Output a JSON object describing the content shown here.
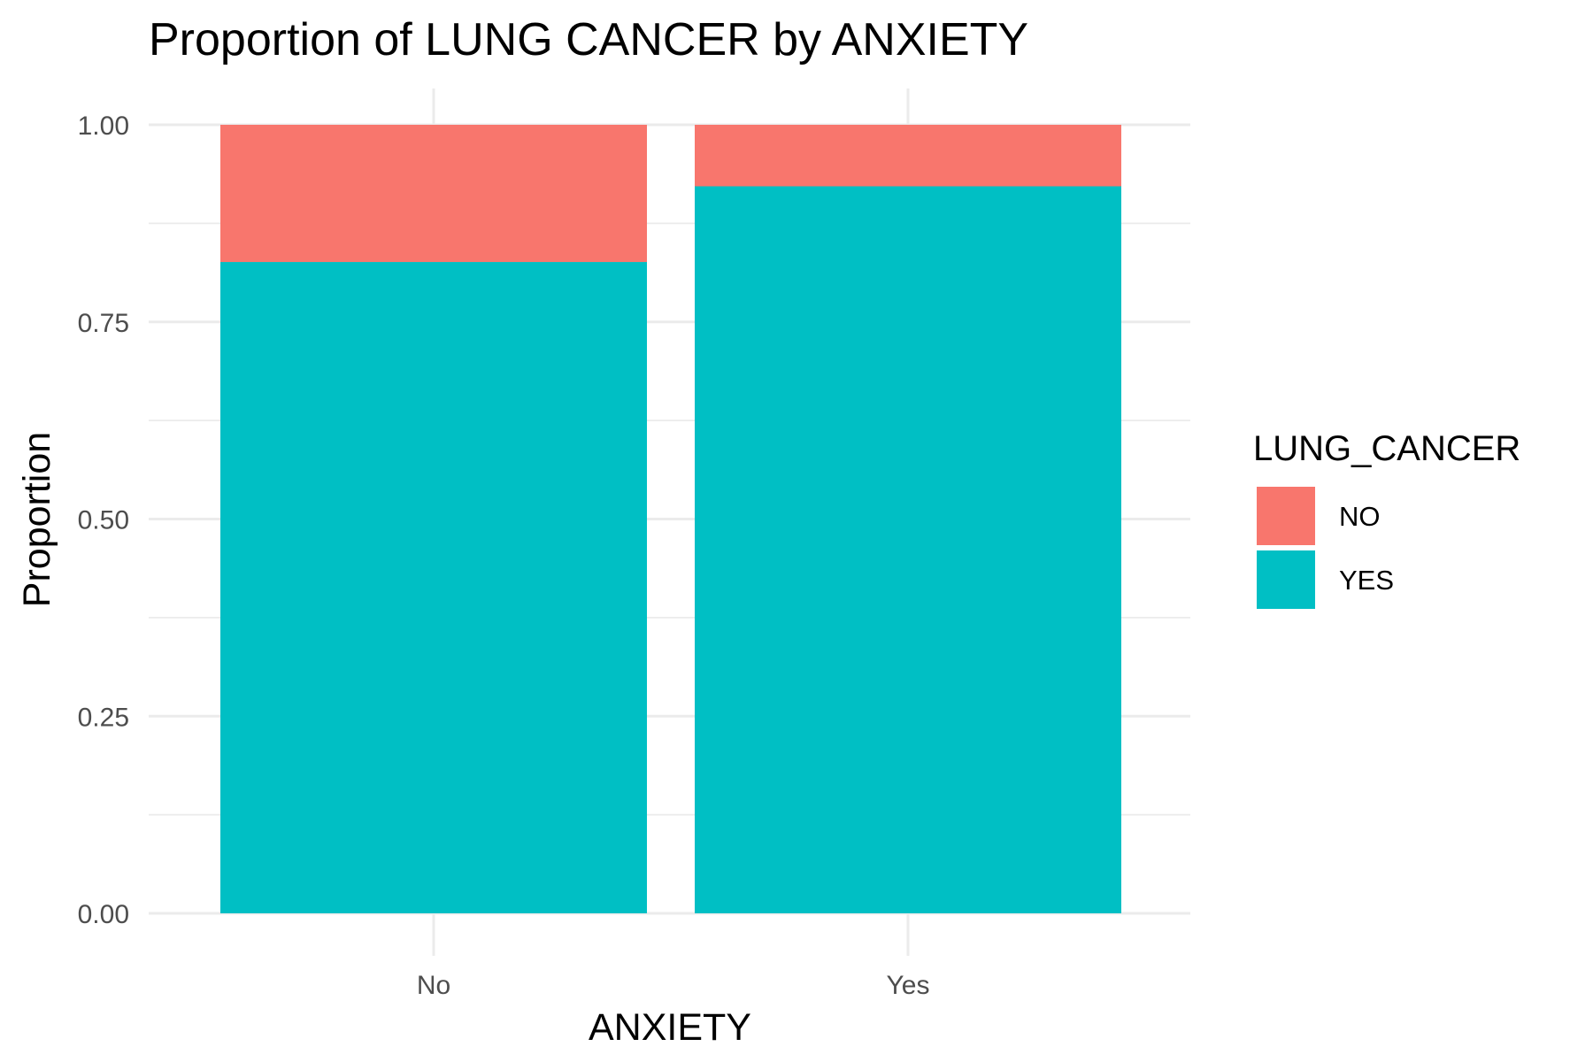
{
  "chart_data": {
    "type": "bar",
    "stacked": true,
    "title": "Proportion of LUNG CANCER by ANXIETY",
    "xlabel": "ANXIETY",
    "ylabel": "Proportion",
    "categories": [
      "No",
      "Yes"
    ],
    "series": [
      {
        "name": "YES",
        "color": "#00BFC4",
        "values": [
          0.826,
          0.922
        ]
      },
      {
        "name": "NO",
        "color": "#F8766D",
        "values": [
          0.174,
          0.078
        ]
      }
    ],
    "ylim": [
      0,
      1
    ],
    "yticks": [
      "0.00",
      "0.25",
      "0.50",
      "0.75",
      "1.00"
    ],
    "grid": true,
    "legend": {
      "title": "LUNG_CANCER",
      "position": "right",
      "order": [
        "NO",
        "YES"
      ]
    }
  }
}
